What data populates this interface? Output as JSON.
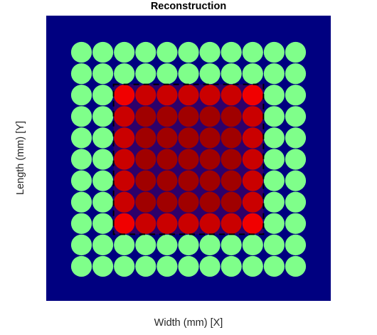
{
  "chart_data": {
    "type": "heatmap",
    "title": "Reconstruction",
    "xlabel": "Width (mm) [X]",
    "ylabel": "Length (mm) [Y]",
    "grid": false,
    "legend": "none",
    "colors": {
      "background": "#000080",
      "outer_circle": "#7fff8a",
      "inner_circle": "#8b0000",
      "corner_circle": "#ee0000",
      "edge_circle": "#bf0000",
      "overlay_fill": "#ff0000",
      "overlay_dash": "#000000"
    },
    "grid_size": [
      11,
      11
    ],
    "levels_legend": "0 = outer ring, 1 = interior, 2 = interior edge, 3 = interior corner",
    "values": [
      [
        0,
        0,
        0,
        0,
        0,
        0,
        0,
        0,
        0,
        0,
        0
      ],
      [
        0,
        0,
        0,
        0,
        0,
        0,
        0,
        0,
        0,
        0,
        0
      ],
      [
        0,
        0,
        3,
        2,
        2,
        2,
        2,
        2,
        3,
        0,
        0
      ],
      [
        0,
        0,
        2,
        1,
        1,
        1,
        1,
        1,
        2,
        0,
        0
      ],
      [
        0,
        0,
        2,
        1,
        1,
        1,
        1,
        1,
        2,
        0,
        0
      ],
      [
        0,
        0,
        2,
        1,
        1,
        1,
        1,
        1,
        2,
        0,
        0
      ],
      [
        0,
        0,
        2,
        1,
        1,
        1,
        1,
        1,
        2,
        0,
        0
      ],
      [
        0,
        0,
        2,
        1,
        1,
        1,
        1,
        1,
        2,
        0,
        0
      ],
      [
        0,
        0,
        3,
        2,
        2,
        2,
        2,
        2,
        3,
        0,
        0
      ],
      [
        0,
        0,
        0,
        0,
        0,
        0,
        0,
        0,
        0,
        0,
        0
      ],
      [
        0,
        0,
        0,
        0,
        0,
        0,
        0,
        0,
        0,
        0,
        0
      ]
    ],
    "overlay_region": {
      "rows": [
        2,
        8
      ],
      "cols": [
        2,
        8
      ]
    }
  }
}
